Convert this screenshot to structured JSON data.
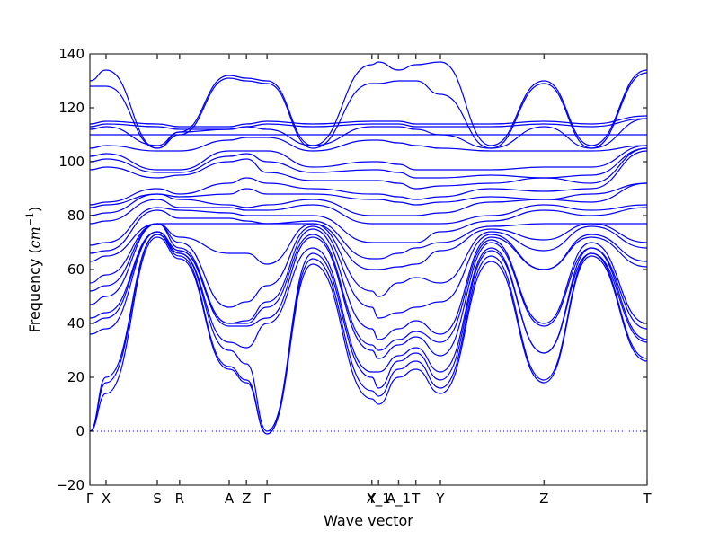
{
  "chart_data": {
    "type": "line",
    "title": "",
    "xlabel": "Wave vector",
    "ylabel_main": "Frequency (",
    "ylabel_unit_base": "cm",
    "ylabel_unit_exp": "−1",
    "ylabel_close": ")",
    "xlim": [
      0,
      1
    ],
    "ylim": [
      -20,
      140
    ],
    "yticks": [
      -20,
      0,
      20,
      40,
      60,
      80,
      100,
      120,
      140
    ],
    "xticks": [
      {
        "label": "Γ",
        "x": 0.0
      },
      {
        "label": "X",
        "x": 0.029
      },
      {
        "label": "S",
        "x": 0.121
      },
      {
        "label": "R",
        "x": 0.161
      },
      {
        "label": "A",
        "x": 0.25
      },
      {
        "label": "Z",
        "x": 0.281
      },
      {
        "label": "Γ",
        "x": 0.318
      },
      {
        "label": "Y",
        "x": 0.506
      },
      {
        "label": "X_1",
        "x": 0.518
      },
      {
        "label": "A_1",
        "x": 0.554
      },
      {
        "label": "T",
        "x": 0.585
      },
      {
        "label": "Y",
        "x": 0.629
      },
      {
        "label": "Z",
        "x": 0.815
      },
      {
        "label": "T",
        "x": 1.0
      }
    ],
    "zero_line": true,
    "line_color": "#0000ff",
    "x": [
      0,
      0.029,
      0.121,
      0.161,
      0.25,
      0.281,
      0.318,
      0.4,
      0.506,
      0.518,
      0.554,
      0.585,
      0.629,
      0.72,
      0.815,
      0.9,
      1.0
    ],
    "series": [
      {
        "values": [
          0,
          14,
          72,
          64,
          23,
          18,
          -1,
          62,
          12,
          10,
          20,
          23,
          14,
          63,
          18,
          65,
          26
        ]
      },
      {
        "values": [
          0,
          18,
          73,
          65,
          24,
          19,
          -1,
          64,
          15,
          13,
          23,
          26,
          16,
          65,
          19,
          66,
          27
        ]
      },
      {
        "values": [
          0,
          20,
          73,
          66,
          30,
          25,
          0,
          66,
          20,
          16,
          26,
          29,
          19,
          67,
          29,
          66,
          33
        ]
      },
      {
        "values": [
          36,
          38,
          74,
          66,
          33,
          31,
          40,
          68,
          22,
          22,
          28,
          31,
          22,
          68,
          29,
          68,
          34
        ]
      },
      {
        "values": [
          40,
          42,
          74,
          67,
          39,
          39,
          42,
          72,
          30,
          27,
          32,
          35,
          28,
          70,
          39,
          68,
          38
        ]
      },
      {
        "values": [
          42,
          44,
          74,
          67,
          40,
          40,
          46,
          73,
          32,
          30,
          34,
          37,
          33,
          71,
          40,
          70,
          40
        ]
      },
      {
        "values": [
          47,
          50,
          77,
          68,
          40,
          41,
          48,
          75,
          38,
          34,
          38,
          41,
          36,
          72,
          60,
          72,
          61
        ]
      },
      {
        "values": [
          52,
          54,
          77,
          70,
          46,
          48,
          54,
          76,
          46,
          42,
          44,
          46,
          48,
          73,
          60,
          73,
          63
        ]
      },
      {
        "values": [
          55,
          58,
          77,
          72,
          66,
          66,
          62,
          77,
          52,
          50,
          55,
          57,
          55,
          74,
          67,
          76,
          68
        ]
      },
      {
        "values": [
          63,
          65,
          77,
          77,
          77,
          77,
          77,
          77,
          60,
          60,
          61,
          62,
          67,
          75,
          71,
          77,
          70
        ]
      },
      {
        "values": [
          66,
          67,
          82,
          79,
          79,
          78,
          77,
          78,
          64,
          64,
          66,
          68,
          70,
          76,
          77,
          77,
          77
        ]
      },
      {
        "values": [
          69,
          70,
          83,
          82,
          81,
          80,
          80,
          80,
          70,
          70,
          70,
          70,
          74,
          78,
          82,
          80,
          83
        ]
      },
      {
        "values": [
          77,
          78,
          86,
          83,
          83,
          82,
          82,
          84,
          77,
          77,
          77,
          77,
          77,
          80,
          84,
          82,
          84
        ]
      },
      {
        "values": [
          80,
          81,
          88,
          86,
          84,
          83,
          84,
          86,
          80,
          80,
          80,
          80,
          81,
          85,
          86,
          85,
          92
        ]
      },
      {
        "values": [
          83,
          84,
          88,
          87,
          88,
          90,
          88,
          88,
          86,
          86,
          85,
          84,
          85,
          87,
          86,
          88,
          92
        ]
      },
      {
        "values": [
          84,
          85,
          90,
          88,
          92,
          94,
          92,
          90,
          88,
          88,
          87,
          86,
          87,
          90,
          89,
          90,
          104
        ]
      },
      {
        "values": [
          97,
          98,
          94,
          95,
          100,
          101,
          96,
          93,
          93,
          93,
          92,
          90,
          91,
          92,
          94,
          92,
          105
        ]
      },
      {
        "values": [
          100,
          101,
          96,
          96,
          102,
          103,
          100,
          96,
          97,
          97,
          96,
          94,
          94,
          95,
          94,
          95,
          105
        ]
      },
      {
        "values": [
          102,
          103,
          97,
          97,
          104,
          104,
          104,
          98,
          100,
          100,
          99,
          97,
          97,
          97,
          98,
          98,
          106
        ]
      },
      {
        "values": [
          105,
          106,
          104,
          104,
          108,
          109,
          109,
          104,
          108,
          108,
          107,
          106,
          105,
          104,
          104,
          104,
          106
        ]
      },
      {
        "values": [
          110,
          110,
          110,
          110,
          110,
          110,
          110,
          110,
          110,
          110,
          110,
          110,
          110,
          110,
          110,
          110,
          110
        ]
      },
      {
        "values": [
          112,
          113,
          106,
          111,
          112,
          113,
          112,
          106,
          113,
          113,
          113,
          112,
          110,
          105,
          113,
          105,
          116
        ]
      },
      {
        "values": [
          113,
          114,
          113,
          112,
          112,
          113,
          114,
          113,
          114,
          114,
          114,
          113,
          113,
          113,
          114,
          113,
          116
        ]
      },
      {
        "values": [
          114,
          115,
          114,
          113,
          113,
          114,
          115,
          114,
          115,
          115,
          115,
          114,
          114,
          114,
          115,
          114,
          117
        ]
      },
      {
        "values": [
          128,
          128,
          105,
          110,
          131,
          130,
          129,
          105,
          129,
          129,
          130,
          130,
          125,
          105,
          129,
          105,
          133
        ]
      },
      {
        "values": [
          130,
          134,
          105,
          111,
          132,
          131,
          130,
          106,
          136,
          137,
          134,
          136,
          137,
          106,
          130,
          106,
          134
        ]
      }
    ]
  }
}
